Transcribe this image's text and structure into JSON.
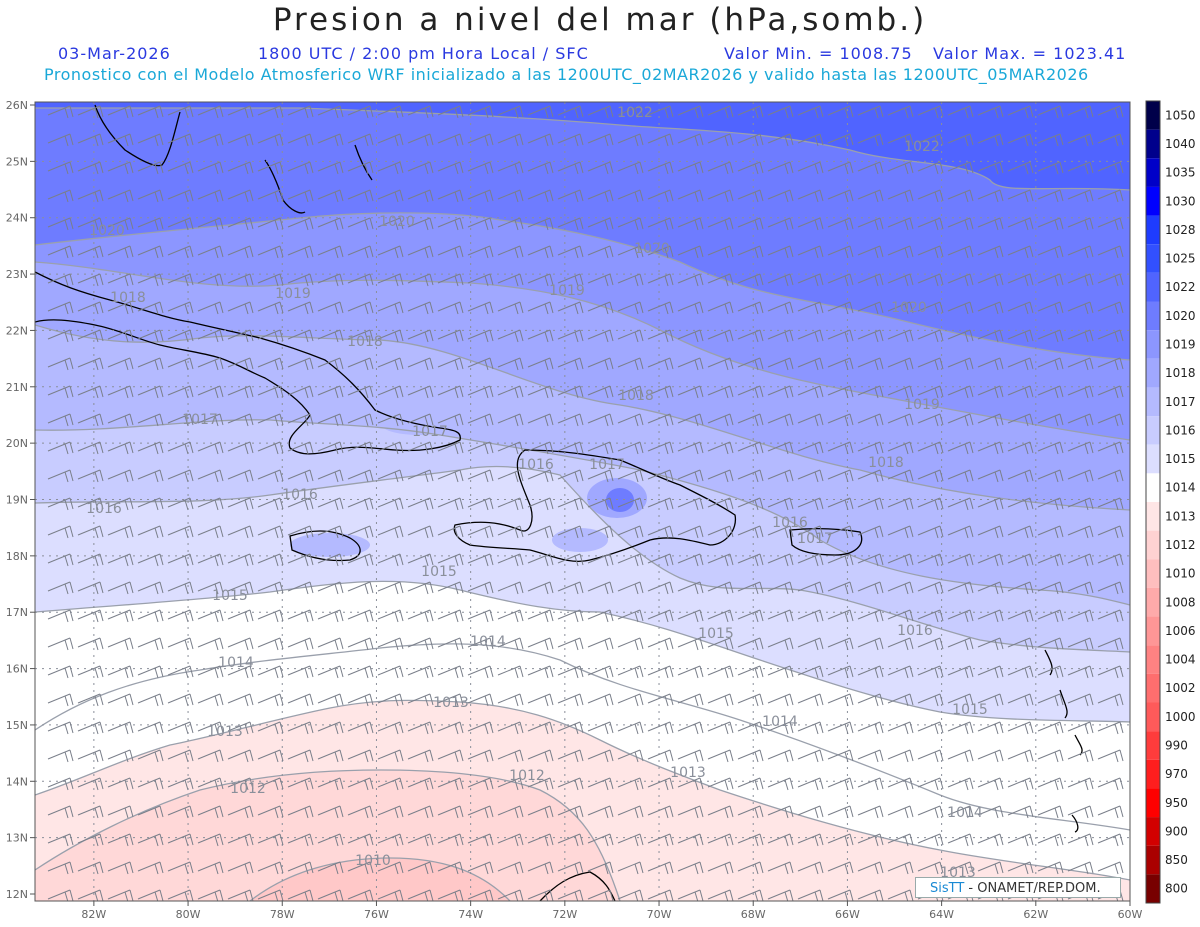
{
  "title": "Presion a nivel del mar (hPa,somb.)",
  "date": "03-Mar-2026",
  "time_info": "1800 UTC / 2:00 pm Hora Local / SFC",
  "min_label": "Valor Min. = 1008.75",
  "max_label": "Valor Max. = 1023.41",
  "model_info": "Pronostico con el Modelo Atmosferico WRF inicializado a las 1200UTC_02MAR2026 y valido hasta las  1200UTC_05MAR2026",
  "credit_brand": "SisTT",
  "credit_text": " - ONAMET/REP.DOM.",
  "lat_labels": [
    "26N",
    "25N",
    "24N",
    "23N",
    "22N",
    "21N",
    "20N",
    "19N",
    "18N",
    "17N",
    "16N",
    "15N",
    "14N",
    "13N",
    "12N"
  ],
  "lon_labels": [
    "82W",
    "80W",
    "78W",
    "76W",
    "74W",
    "72W",
    "70W",
    "68W",
    "66W",
    "64W",
    "62W",
    "60W"
  ],
  "colorbar": {
    "labels": [
      "1050",
      "1040",
      "1035",
      "1030",
      "1028",
      "1025",
      "1022",
      "1020",
      "1019",
      "1018",
      "1017",
      "1016",
      "1015",
      "1014",
      "1013",
      "1012",
      "1010",
      "1008",
      "1006",
      "1004",
      "1002",
      "1000",
      "990",
      "970",
      "950",
      "900",
      "850",
      "800"
    ],
    "colors": [
      "#00004a",
      "#00008c",
      "#0000c8",
      "#0000ff",
      "#1e3cff",
      "#3250ff",
      "#5064ff",
      "#6e7cff",
      "#8c96ff",
      "#a0a8ff",
      "#b4baff",
      "#c8ccff",
      "#dcdeff",
      "#ffffff",
      "#ffe6e6",
      "#ffd2d2",
      "#ffbebe",
      "#ffaaaa",
      "#ff9696",
      "#ff8282",
      "#ff6e6e",
      "#ff5a5a",
      "#ff3c3c",
      "#ff1e1e",
      "#ff0000",
      "#d20000",
      "#aa0000",
      "#780000"
    ]
  },
  "isobars": [
    {
      "value": "1022",
      "labels": [
        [
          635,
          117
        ],
        [
          922,
          151
        ]
      ]
    },
    {
      "value": "1020",
      "labels": [
        [
          107,
          235
        ],
        [
          397,
          226
        ],
        [
          652,
          253
        ],
        [
          909,
          312
        ]
      ]
    },
    {
      "value": "1019",
      "labels": [
        [
          293,
          298
        ],
        [
          567,
          295
        ],
        [
          922,
          409
        ]
      ]
    },
    {
      "value": "1018",
      "labels": [
        [
          128,
          302
        ],
        [
          365,
          346
        ],
        [
          636,
          400
        ],
        [
          886,
          467
        ]
      ]
    },
    {
      "value": "1017",
      "labels": [
        [
          200,
          424
        ],
        [
          430,
          436
        ],
        [
          607,
          469
        ],
        [
          815,
          543
        ]
      ]
    },
    {
      "value": "1016",
      "labels": [
        [
          300,
          499
        ],
        [
          104,
          513
        ],
        [
          536,
          469
        ],
        [
          790,
          527
        ],
        [
          915,
          635
        ]
      ]
    },
    {
      "value": "1015",
      "labels": [
        [
          230,
          600
        ],
        [
          439,
          576
        ],
        [
          716,
          638
        ],
        [
          970,
          714
        ]
      ]
    },
    {
      "value": "1014",
      "labels": [
        [
          236,
          667
        ],
        [
          488,
          646
        ],
        [
          780,
          726
        ],
        [
          965,
          817
        ]
      ]
    },
    {
      "value": "1013",
      "labels": [
        [
          451,
          707
        ],
        [
          225,
          736
        ],
        [
          688,
          777
        ],
        [
          958,
          877
        ]
      ]
    },
    {
      "value": "1012",
      "labels": [
        [
          248,
          793
        ],
        [
          527,
          780
        ]
      ]
    },
    {
      "value": "1010",
      "labels": [
        [
          373,
          865
        ]
      ]
    }
  ]
}
